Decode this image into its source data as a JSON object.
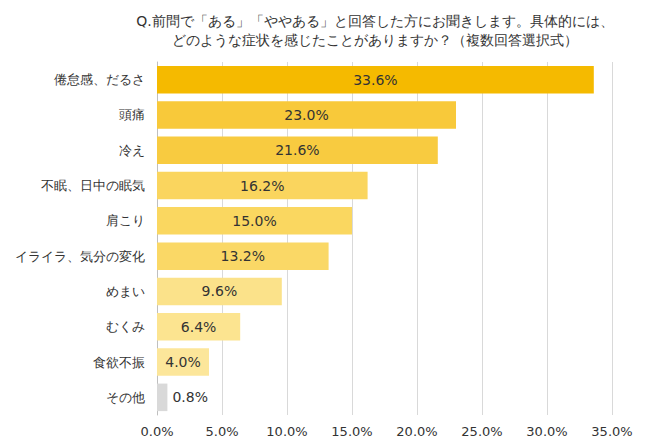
{
  "chart_data": {
    "type": "bar",
    "orientation": "horizontal",
    "title": "Q.前問で「ある」「ややある」と回答した方にお聞きします。具体的には、\nどのような症状を感じたことがありますか？（複数回答選択式）",
    "categories": [
      "倦怠感、だるさ",
      "頭痛",
      "冷え",
      "不眠、日中の眠気",
      "肩こり",
      "イライラ、気分の変化",
      "めまい",
      "むくみ",
      "食欲不振",
      "その他"
    ],
    "values": [
      33.6,
      23.0,
      21.6,
      16.2,
      15.0,
      13.2,
      9.6,
      6.4,
      4.0,
      0.8
    ],
    "value_labels": [
      "33.6%",
      "23.0%",
      "21.6%",
      "16.2%",
      "15.0%",
      "13.2%",
      "9.6%",
      "6.4%",
      "4.0%",
      "0.8%"
    ],
    "colors": [
      "#F5BA00",
      "#F8C93A",
      "#F8CB40",
      "#FAD55E",
      "#FAD760",
      "#FAD866",
      "#FBE28A",
      "#FCE490",
      "#FCE69A",
      "#D9D9D9"
    ],
    "xlim": [
      0,
      35
    ],
    "xticks": [
      {
        "value": 0,
        "label": "0.0%"
      },
      {
        "value": 5,
        "label": "5.0%"
      },
      {
        "value": 10,
        "label": "10.0%"
      },
      {
        "value": 15,
        "label": "15.0%"
      },
      {
        "value": 20,
        "label": "20.0%"
      },
      {
        "value": 25,
        "label": "25.0%"
      },
      {
        "value": 30,
        "label": "30.0%"
      },
      {
        "value": 35,
        "label": "35.0%"
      }
    ],
    "grid": true,
    "data_labels": true
  }
}
